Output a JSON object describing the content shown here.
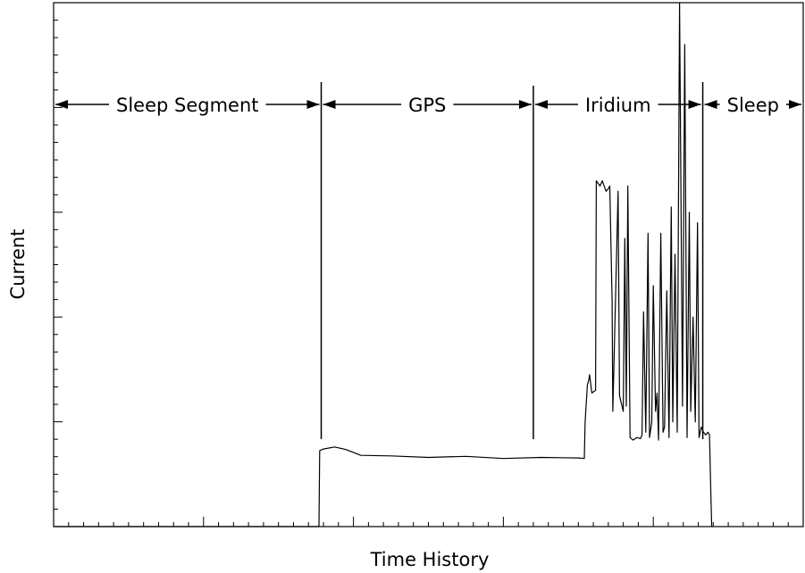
{
  "chart_data": {
    "type": "line",
    "title": "",
    "xlabel": "Time History",
    "ylabel": "Current",
    "xlim": [
      0,
      100
    ],
    "ylim": [
      0,
      100
    ],
    "grid": false,
    "legend": "none",
    "series": [
      {
        "color": "#000000",
        "x": [
          0,
          35.4,
          35.5,
          36,
          37.5,
          39,
          41,
          45,
          50,
          55,
          60,
          65,
          70,
          70.8,
          70.9,
          71.2,
          71.4,
          71.5,
          71.8,
          72.3,
          72.4,
          72.9,
          73.2,
          73.7,
          74,
          74.2,
          74.5,
          74.6,
          75.3,
          75.5,
          76,
          76.2,
          76.4,
          76.6,
          76.9,
          77.3,
          77.8,
          78.3,
          78.5,
          78.7,
          79,
          79.3,
          79.5,
          79.8,
          80,
          80.3,
          80.5,
          80.7,
          81,
          81.3,
          81.5,
          81.8,
          82.1,
          82.4,
          82.6,
          82.9,
          83.2,
          83.5,
          83.9,
          84.2,
          84.5,
          84.8,
          85,
          85.3,
          85.6,
          85.9,
          86.1,
          86.4,
          86.7,
          87,
          87.3,
          87.5,
          87.7,
          87.8
        ],
        "y": [
          0,
          0,
          14.5,
          14.8,
          15.2,
          14.7,
          13.6,
          13.5,
          13.2,
          13.4,
          13.0,
          13.2,
          13.1,
          13.0,
          20,
          27,
          28,
          29,
          25.5,
          26,
          66,
          65,
          66,
          64,
          64.5,
          65,
          43,
          22,
          64,
          25,
          22,
          55,
          23,
          65,
          17,
          16.5,
          17,
          16.8,
          17.5,
          41,
          18,
          56,
          17,
          20,
          46,
          22,
          25.5,
          16.5,
          56,
          18,
          19,
          45,
          17,
          61,
          20,
          52,
          18,
          100,
          23,
          92,
          17,
          60,
          22,
          40,
          20,
          58,
          17,
          19,
          18,
          17.5,
          18,
          17.5,
          5,
          0
        ]
      }
    ],
    "annotations": [
      {
        "label": "Sleep Segment",
        "start": 0,
        "end": 35.7
      },
      {
        "label": "GPS",
        "start": 35.7,
        "end": 64.0
      },
      {
        "label": "Iridium",
        "start": 64.0,
        "end": 86.6
      },
      {
        "label": "Sleep",
        "start": 86.6,
        "end": 100
      }
    ]
  }
}
